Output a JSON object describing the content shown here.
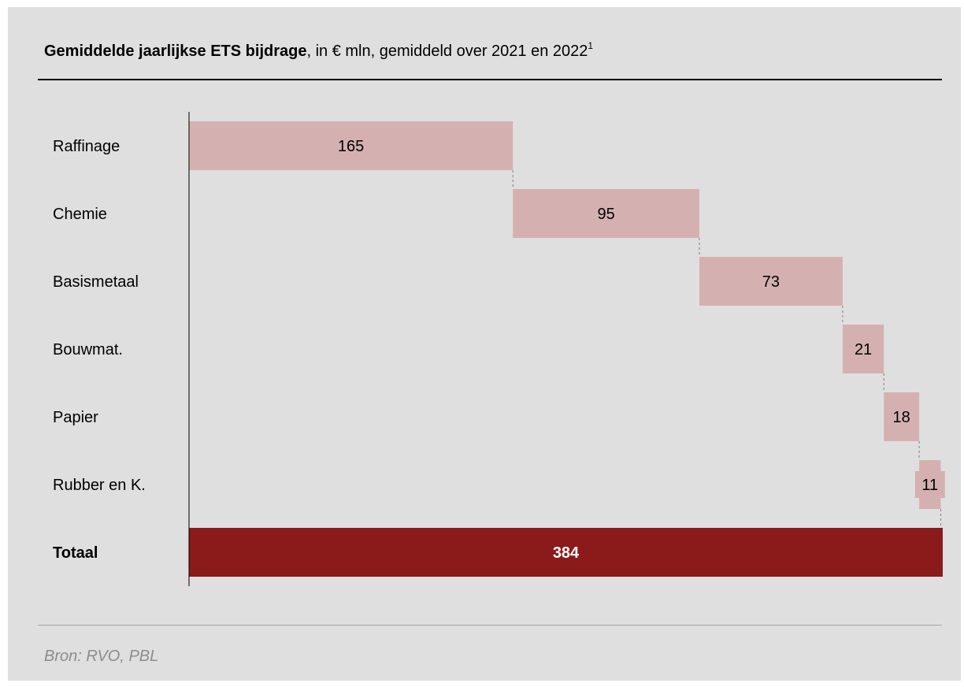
{
  "title": {
    "bold": "Gemiddelde jaarlijkse ETS bijdrage",
    "rest": ", in € mln, gemiddeld over 2021 en 2022",
    "footnote": "1"
  },
  "source": "Bron: RVO, PBL",
  "colors": {
    "background": "#e0dfdf",
    "step_bar": "#d4b1b0",
    "total_bar": "#8b1a1a",
    "connector": "#7f7f7f"
  },
  "chart_data": {
    "type": "bar",
    "subtype": "waterfall",
    "orientation": "horizontal",
    "categories": [
      "Raffinage",
      "Chemie",
      "Basismetaal",
      "Bouwmat.",
      "Papier",
      "Rubber en K.",
      "Totaal"
    ],
    "values": [
      165,
      95,
      73,
      21,
      18,
      11,
      384
    ],
    "total_index": 6,
    "xlim": [
      0,
      384
    ],
    "grid": false,
    "legend": "none"
  }
}
